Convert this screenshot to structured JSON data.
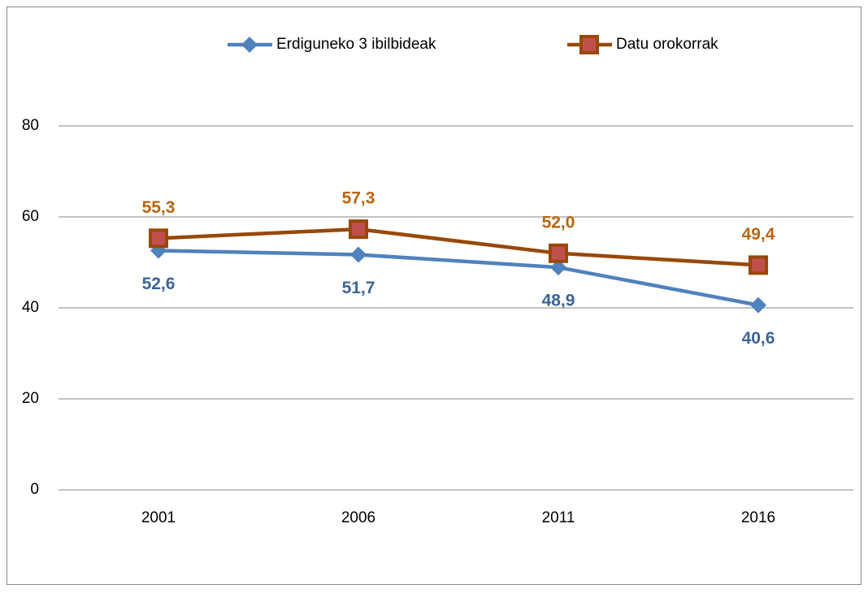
{
  "chart_data": {
    "type": "line",
    "categories": [
      "2001",
      "2006",
      "2011",
      "2016"
    ],
    "series": [
      {
        "name": "Erdiguneko 3 ibilbideak",
        "color": "#4f81bd",
        "marker": "diamond",
        "marker_fill": "#4f81bd",
        "label_color": "#3b6496",
        "label_position": "below",
        "values": [
          52.6,
          51.7,
          48.9,
          40.6
        ],
        "value_labels": [
          "52,6",
          "51,7",
          "48,9",
          "40,6"
        ]
      },
      {
        "name": "Datu orokorrak",
        "color": "#984807",
        "marker": "square",
        "marker_fill": "#c0504d",
        "label_color": "#b9650f",
        "label_position": "above",
        "values": [
          55.3,
          57.3,
          52.0,
          49.4
        ],
        "value_labels": [
          "55,3",
          "57,3",
          "52,0",
          "49,4"
        ]
      }
    ],
    "ylim": [
      0,
      80
    ],
    "yticks": [
      0,
      20,
      40,
      60,
      80
    ],
    "grid": true,
    "legend": "top"
  }
}
